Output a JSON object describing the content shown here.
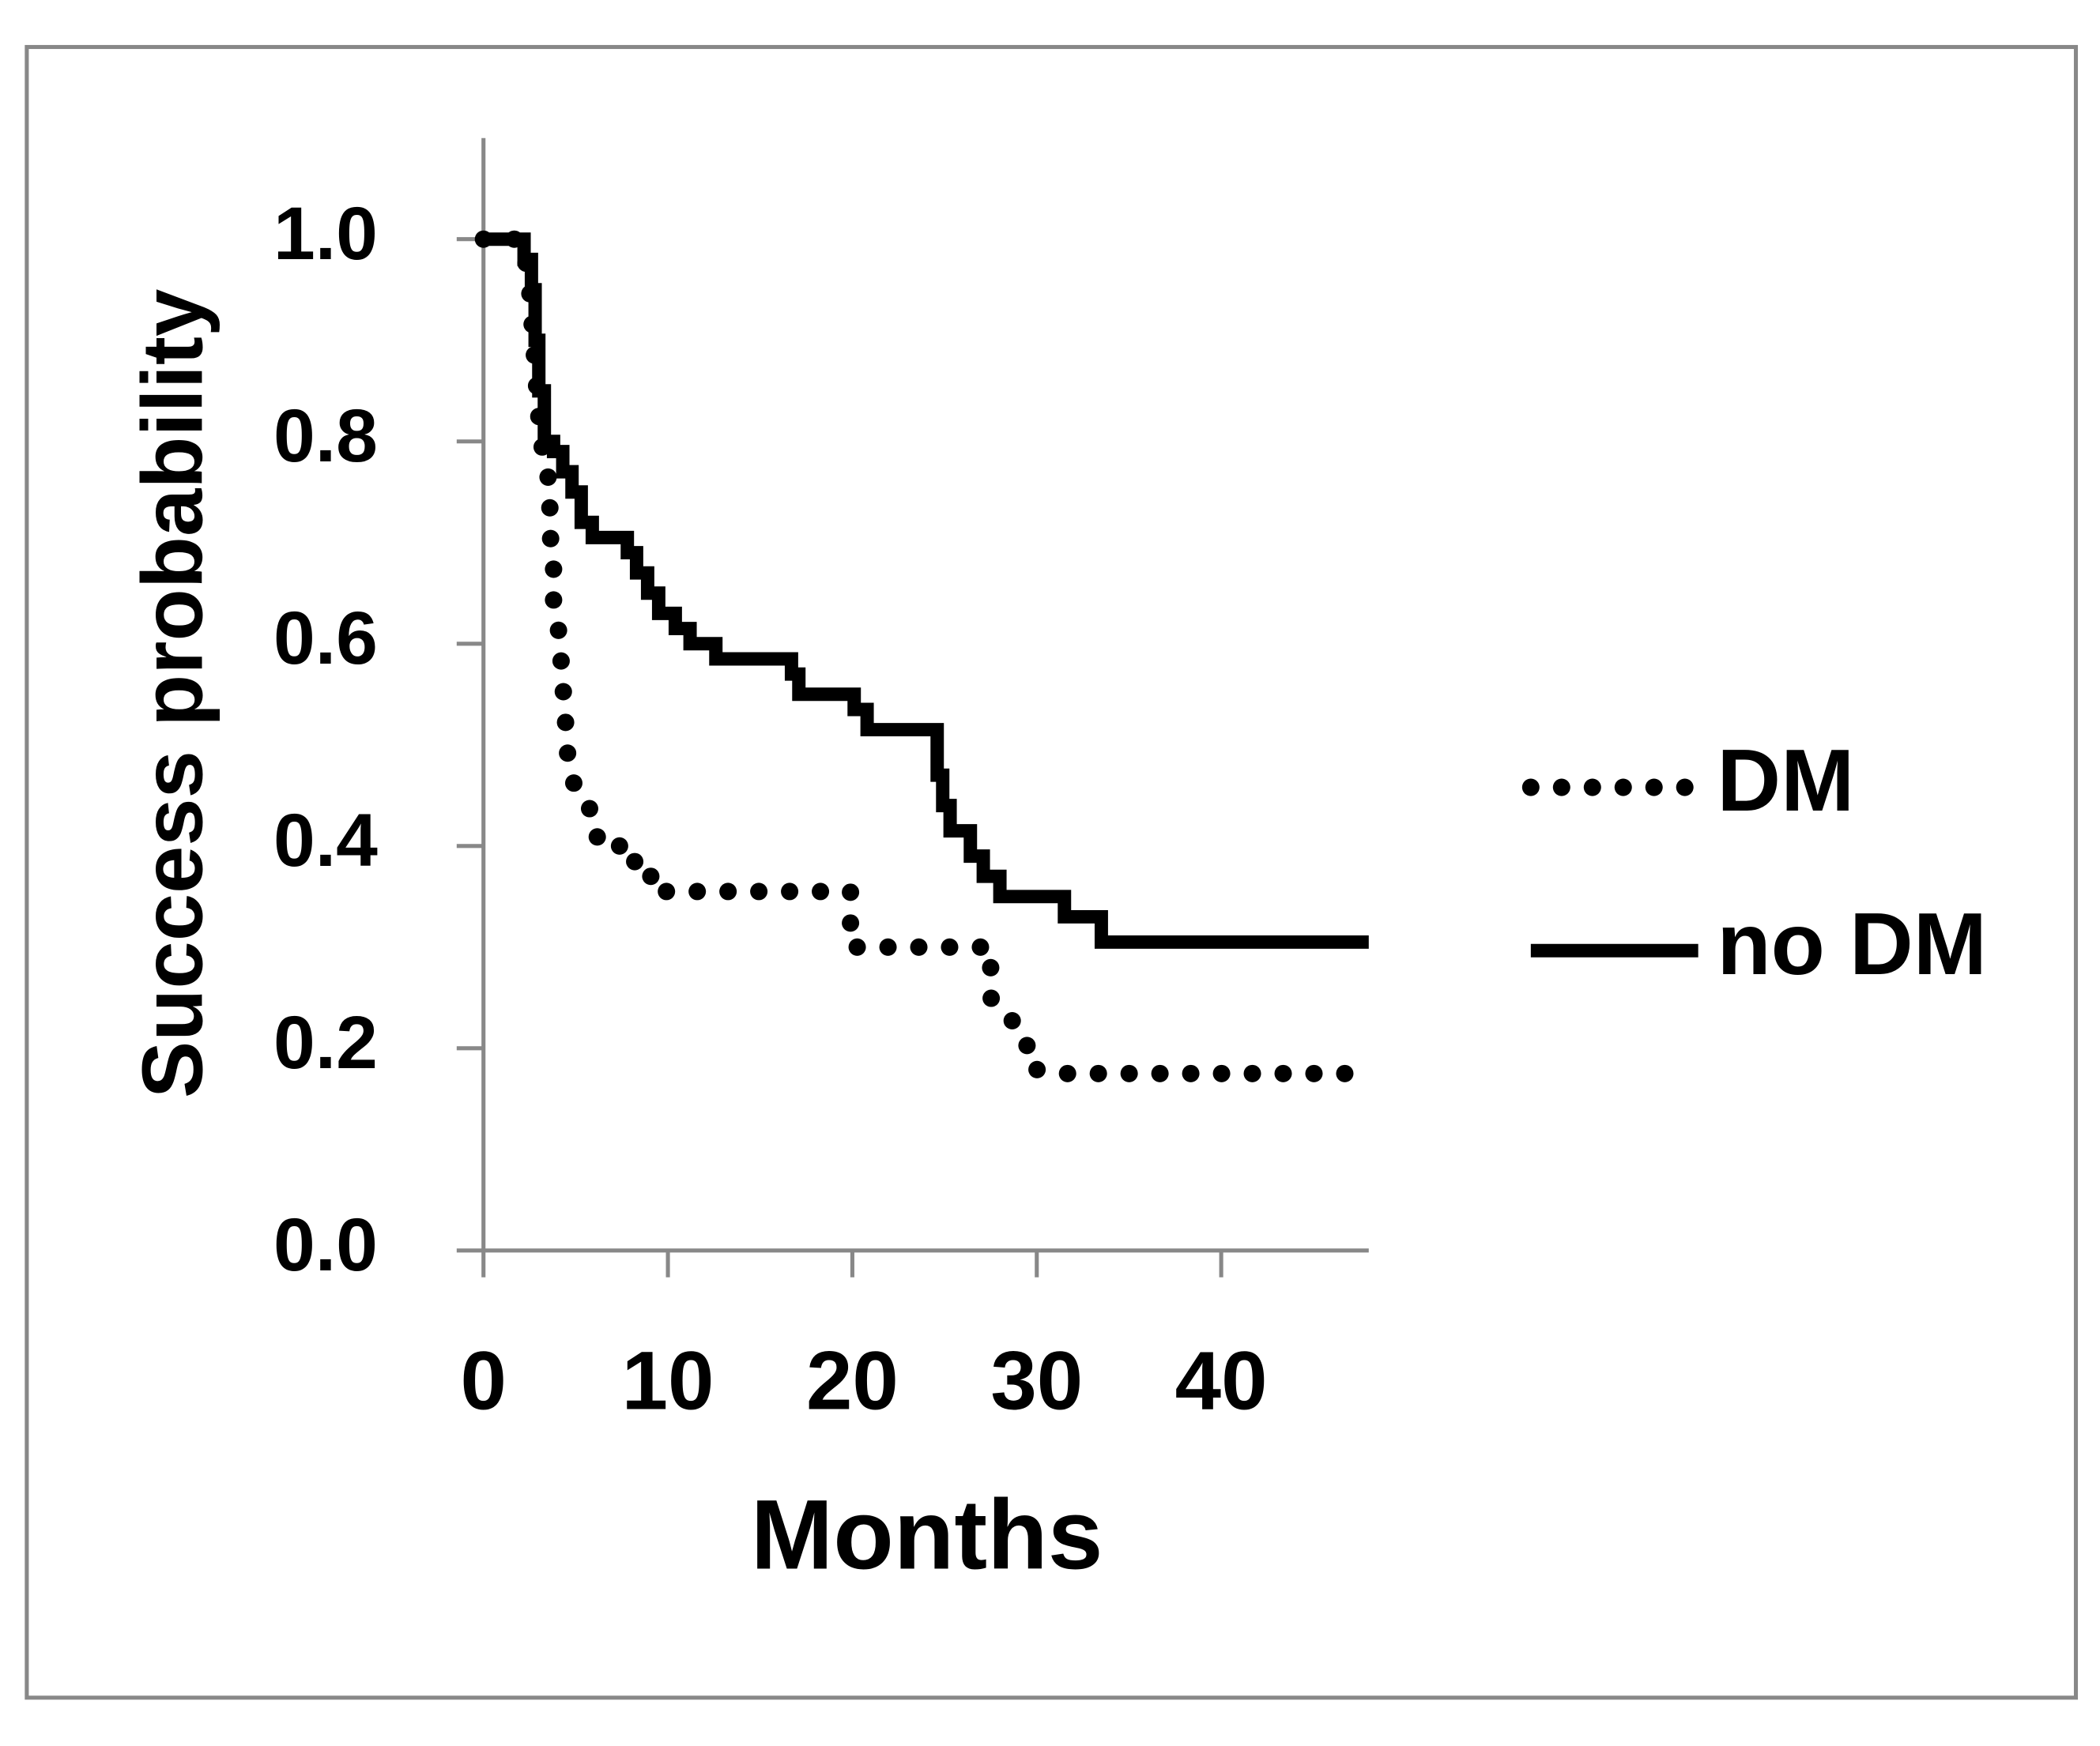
{
  "chart_data": {
    "type": "line",
    "x_label": "Months",
    "y_label": "Success probability",
    "xlim": [
      0,
      48
    ],
    "xticks": [
      0,
      10,
      20,
      30,
      40
    ],
    "ylim": [
      0,
      1.1
    ],
    "yticks": [
      {
        "value": 0,
        "label": "0.0"
      },
      {
        "value": 0.2,
        "label": "0.2"
      },
      {
        "value": 0.4,
        "label": "0.4"
      },
      {
        "value": 0.6,
        "label": "0.6"
      },
      {
        "value": 0.8,
        "label": "0.8"
      },
      {
        "value": 1,
        "label": "1.0"
      }
    ],
    "legend": "right",
    "series": [
      {
        "name": "DM",
        "color": "#000000",
        "line_style": "dotted",
        "x": [
          0,
          2,
          2.2,
          2.5,
          2.7,
          2.9,
          3.1,
          3.4,
          3.6,
          3.6,
          3.8,
          3.8,
          4.1,
          4.3,
          4.5,
          4.6,
          5.1,
          6.1,
          6.2,
          8.2,
          8.2,
          9.7,
          9.7,
          19.9,
          19.9,
          27.5,
          27.5,
          27.5,
          28.5,
          29.4,
          29.6,
          31.5,
          47
        ],
        "values": [
          1,
          1,
          0.99,
          0.95,
          0.9,
          0.85,
          0.8,
          0.78,
          0.75,
          0.71,
          0.68,
          0.64,
          0.61,
          0.56,
          0.51,
          0.48,
          0.45,
          0.43,
          0.4,
          0.4,
          0.37,
          0.37,
          0.355,
          0.355,
          0.3,
          0.3,
          0.29,
          0.25,
          0.23,
          0.215,
          0.18,
          0.175,
          0.175
        ]
      },
      {
        "name": "no DM",
        "color": "#000000",
        "line_style": "solid",
        "x": [
          0,
          2.2,
          2.2,
          2.6,
          2.6,
          2.8,
          2.8,
          3.0,
          3.0,
          3.3,
          3.3,
          3.8,
          3.8,
          4.3,
          4.3,
          4.8,
          4.8,
          5.3,
          5.3,
          5.9,
          5.9,
          7.8,
          7.8,
          8.3,
          8.3,
          8.9,
          8.9,
          9.5,
          9.5,
          10.4,
          10.4,
          11.2,
          11.2,
          12.6,
          12.6,
          16.7,
          16.7,
          17.1,
          17.1,
          20.1,
          20.1,
          20.8,
          20.8,
          24.6,
          24.6,
          24.9,
          24.9,
          25.3,
          25.3,
          26.4,
          26.4,
          27.1,
          27.1,
          28.0,
          28.0,
          31.5,
          31.5,
          33.5,
          33.5,
          48
        ],
        "values": [
          1,
          1,
          0.98,
          0.98,
          0.95,
          0.95,
          0.9,
          0.9,
          0.85,
          0.85,
          0.8,
          0.8,
          0.79,
          0.79,
          0.77,
          0.77,
          0.75,
          0.75,
          0.72,
          0.72,
          0.705,
          0.705,
          0.69,
          0.69,
          0.67,
          0.67,
          0.65,
          0.65,
          0.63,
          0.63,
          0.615,
          0.615,
          0.6,
          0.6,
          0.585,
          0.585,
          0.57,
          0.57,
          0.55,
          0.55,
          0.535,
          0.535,
          0.515,
          0.515,
          0.47,
          0.47,
          0.44,
          0.44,
          0.415,
          0.415,
          0.39,
          0.39,
          0.37,
          0.37,
          0.35,
          0.35,
          0.33,
          0.33,
          0.305,
          0.305
        ]
      }
    ]
  }
}
